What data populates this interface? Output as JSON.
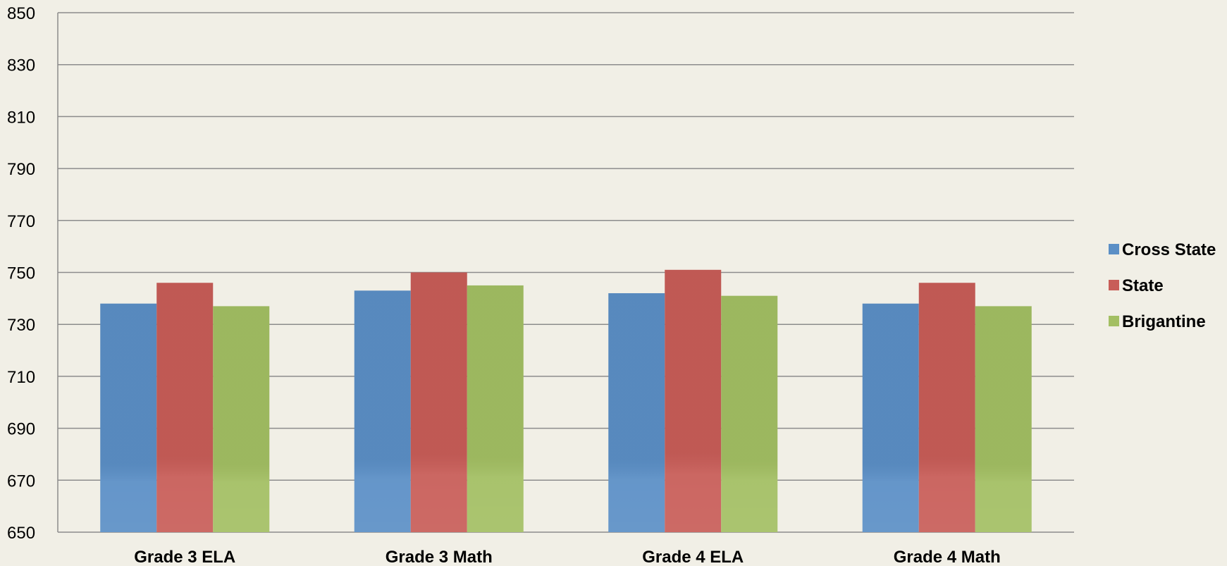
{
  "chart_data": {
    "type": "bar",
    "title": "",
    "xlabel": "",
    "ylabel": "",
    "categories": [
      "Grade 3 ELA",
      "Grade 3 Math",
      "Grade 4 ELA",
      "Grade 4 Math"
    ],
    "series": [
      {
        "name": "Cross State",
        "color": "#5b8fc6",
        "values": [
          738,
          743,
          742,
          738
        ]
      },
      {
        "name": "State",
        "color": "#c85d58",
        "values": [
          746,
          750,
          751,
          746
        ]
      },
      {
        "name": "Brigantine",
        "color": "#a3bf63",
        "values": [
          737,
          745,
          741,
          737
        ]
      }
    ],
    "ylim": [
      650,
      850
    ],
    "yticks": [
      650,
      670,
      690,
      710,
      730,
      750,
      770,
      790,
      810,
      830,
      850
    ],
    "grid": true,
    "legend_position": "right"
  }
}
